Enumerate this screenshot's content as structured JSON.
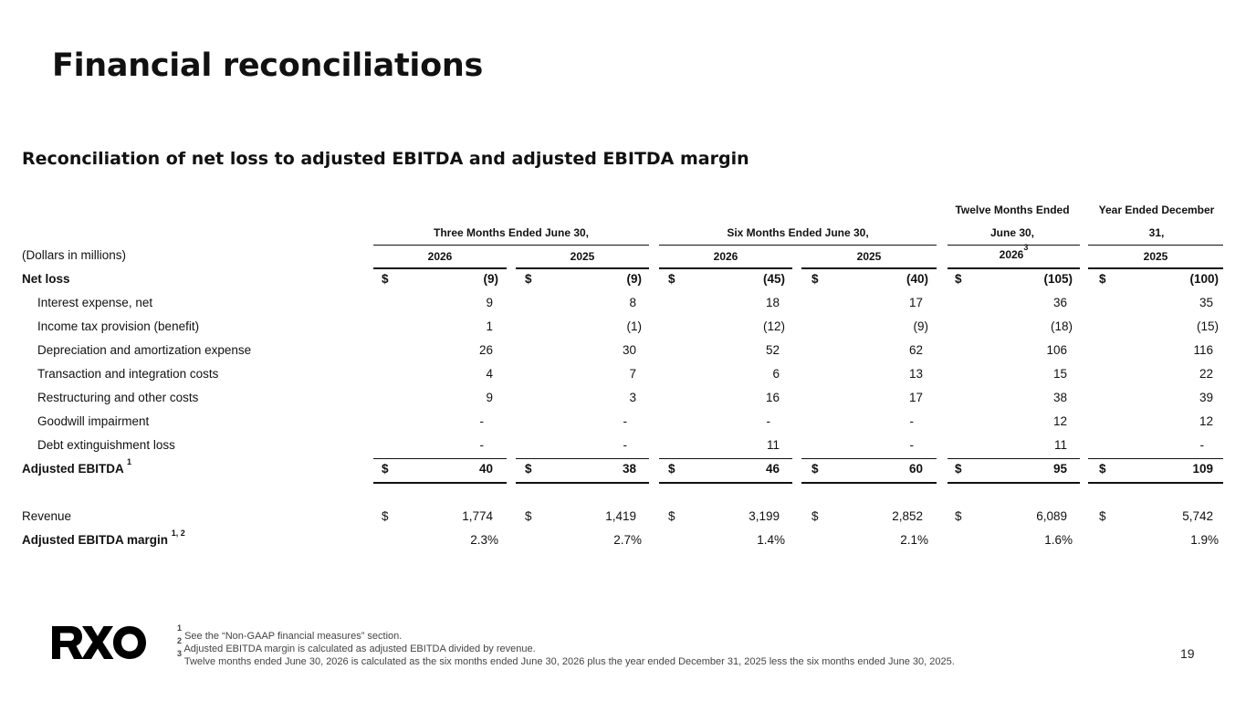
{
  "title": "Financial reconciliations",
  "subtitle": "Reconciliation of net loss to adjusted EBITDA and adjusted EBITDA margin",
  "table": {
    "units_label": "(Dollars in millions)",
    "group_headers": {
      "three_months": "Three Months Ended June 30,",
      "six_months": "Six Months Ended June 30,",
      "twelve_line1": "Twelve Months Ended",
      "twelve_line2": "June 30,",
      "year_line1": "Year Ended December",
      "year_line2": "31,"
    },
    "columns": [
      "2026",
      "2025",
      "2026",
      "2025",
      "2026",
      "2025"
    ],
    "twelve_note_marker": "3",
    "dollar_sign": "$",
    "rows": [
      {
        "label": "Net loss",
        "values": [
          "(9)",
          "(9)",
          "(45)",
          "(40)",
          "(105)",
          "(100)"
        ]
      },
      {
        "label": "Interest expense, net",
        "values": [
          "9",
          "8",
          "18",
          "17",
          "36",
          "35"
        ]
      },
      {
        "label": "Income tax provision (benefit)",
        "values": [
          "1",
          "(1)",
          "(12)",
          "(9)",
          "(18)",
          "(15)"
        ]
      },
      {
        "label": "Depreciation and amortization expense",
        "values": [
          "26",
          "30",
          "52",
          "62",
          "106",
          "116"
        ]
      },
      {
        "label": "Transaction and integration costs",
        "values": [
          "4",
          "7",
          "6",
          "13",
          "15",
          "22"
        ]
      },
      {
        "label": "Restructuring and other costs",
        "values": [
          "9",
          "3",
          "16",
          "17",
          "38",
          "39"
        ]
      },
      {
        "label": "Goodwill impairment",
        "values": [
          "-",
          "-",
          "-",
          "-",
          "12",
          "12"
        ]
      },
      {
        "label": "Debt extinguishment loss",
        "values": [
          "-",
          "-",
          "11",
          "-",
          "11",
          "-"
        ]
      },
      {
        "label": "Adjusted EBITDA",
        "note": "1",
        "values": [
          "40",
          "38",
          "46",
          "60",
          "95",
          "109"
        ]
      },
      {
        "label": "Revenue",
        "values": [
          "1,774",
          "1,419",
          "3,199",
          "2,852",
          "6,089",
          "5,742"
        ]
      },
      {
        "label": "Adjusted EBITDA margin",
        "note": "1, 2",
        "values": [
          "2.3%",
          "2.7%",
          "1.4%",
          "2.1%",
          "1.6%",
          "1.9%"
        ]
      }
    ]
  },
  "footnotes": {
    "n1_marker": "1",
    "n1": " See the “Non-GAAP financial measures” section.",
    "n2_marker": "2",
    "n2": " Adjusted EBITDA margin is calculated as adjusted EBITDA divided by revenue.",
    "n3_marker": "3",
    "n3": " Twelve months ended June 30, 2026 is calculated as the six months ended June 30, 2026 plus the year ended December 31, 2025 less the six months ended June 30, 2025."
  },
  "logo_text": "RXO",
  "page_number": "19"
}
